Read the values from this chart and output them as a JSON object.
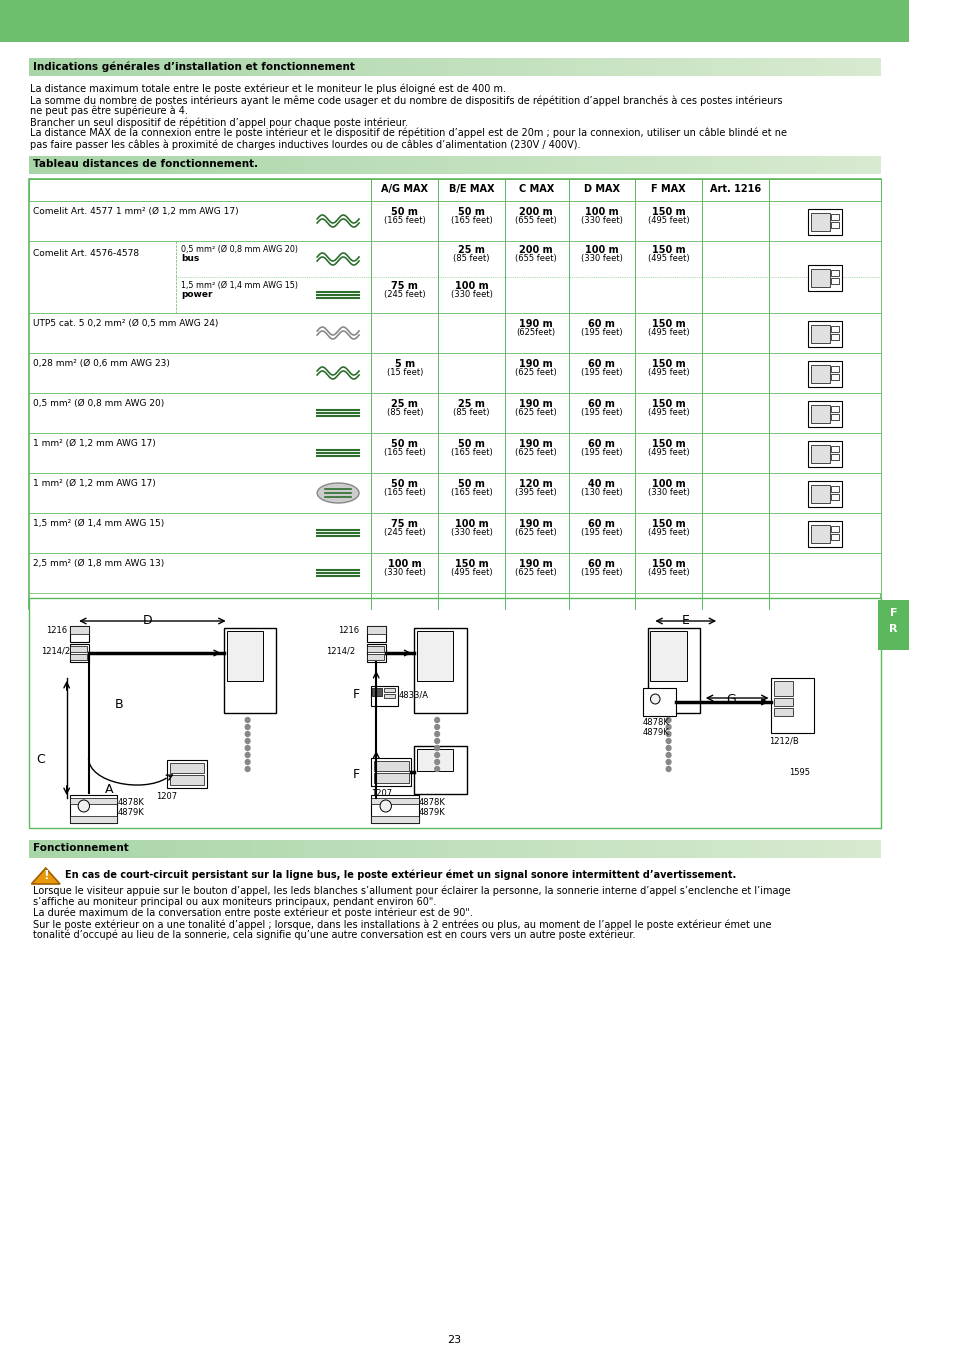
{
  "page_bg": "#ffffff",
  "top_bar_color": "#6dbf6d",
  "section_header_bg_gradient_start": "#a8d5a8",
  "section_header_bg_gradient_end": "#d4ead4",
  "table_border_color": "#5cb85c",
  "sidebar_color": "#5cb85c",
  "page_number": "23",
  "intro_section_title": "Indications générales d’installation et fonctionnement",
  "intro_lines": [
    "La distance maximum totale entre le poste extérieur et le moniteur le plus éloigné est de 400 m.",
    "La somme du nombre de postes intérieurs ayant le même code usager et du nombre de dispositifs de répétition d’appel branchés à ces postes intérieurs",
    "ne peut pas être supérieure à 4.",
    "Brancher un seul dispositif de répétition d’appel pour chaque poste intérieur.",
    "La distance MAX de la connexion entre le poste intérieur et le dispositif de répétition d’appel est de 20m ; pour la connexion, utiliser un câble blindé et ne",
    "pas faire passer les câbles à proximité de charges inductives lourdes ou de câbles d’alimentation (230V / 400V)."
  ],
  "table_section_title": "Tableau distances de fonctionnement.",
  "col_headers": [
    "A/G MAX",
    "B/E MAX",
    "C MAX",
    "D MAX",
    "F MAX",
    "Art. 1216"
  ],
  "fonctionnement_title": "Fonctionnement",
  "warn_text": "En cas de court-circuit persistant sur la ligne bus, le poste extérieur émet un signal sonore intermittent d’avertissement.",
  "fonct_lines": [
    "Lorsque le visiteur appuie sur le bouton d’appel, les leds blanches s’allument pour éclairer la personne, la sonnerie interne d’appel s’enclenche et l’image",
    "s’affiche au moniteur principal ou aux moniteurs principaux, pendant environ 60\".",
    "La durée maximum de la conversation entre poste extérieur et poste intérieur est de 90\".",
    "Sur le poste extérieur on a une tonalité d’appel ; lorsque, dans les installations à 2 entrées ou plus, au moment de l’appel le poste extérieur émet une",
    "tonalité d’occupé au lieu de la sonnerie, cela signifie qu’une autre conversation est en cours vers un autre poste extérieur."
  ]
}
